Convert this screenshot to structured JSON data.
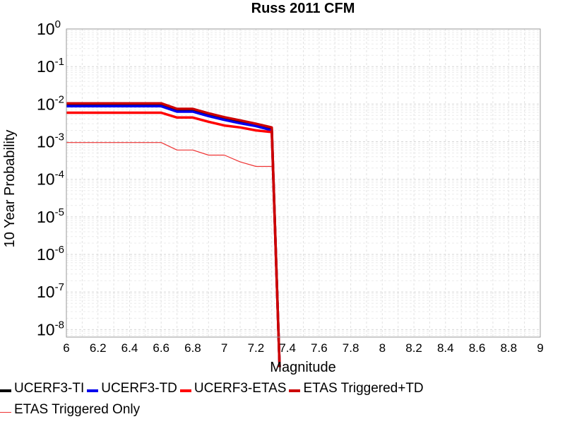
{
  "chart_data": {
    "type": "line",
    "title": "Russ 2011 CFM",
    "xlabel": "Magnitude",
    "ylabel": "10 Year Probability",
    "xlim": [
      6,
      9
    ],
    "ylim_log10": [
      -8.2,
      0
    ],
    "y_scale": "log",
    "x_ticks": [
      "6",
      "6.2",
      "6.4",
      "6.6",
      "6.8",
      "7",
      "7.2",
      "7.4",
      "7.6",
      "7.8",
      "8",
      "8.2",
      "8.4",
      "8.6",
      "8.8",
      "9"
    ],
    "y_ticks": [
      {
        "base": "10",
        "exp": "0"
      },
      {
        "base": "10",
        "exp": "-1"
      },
      {
        "base": "10",
        "exp": "-2"
      },
      {
        "base": "10",
        "exp": "-3"
      },
      {
        "base": "10",
        "exp": "-4"
      },
      {
        "base": "10",
        "exp": "-5"
      },
      {
        "base": "10",
        "exp": "-6"
      },
      {
        "base": "10",
        "exp": "-7"
      },
      {
        "base": "10",
        "exp": "-8"
      }
    ],
    "grid": true,
    "legend_position": "bottom",
    "series": [
      {
        "name": "UCERF3-TI",
        "color": "#000000",
        "weight": "thick",
        "x": [
          6.0,
          6.6,
          6.7,
          6.8,
          6.9,
          7.0,
          7.1,
          7.2,
          7.3,
          7.35
        ],
        "y": [
          0.0095,
          0.0095,
          0.0068,
          0.0068,
          0.0052,
          0.0041,
          0.0034,
          0.0028,
          0.0022,
          1e-09
        ]
      },
      {
        "name": "UCERF3-TD",
        "color": "#0000ee",
        "weight": "thick",
        "x": [
          6.0,
          6.6,
          6.7,
          6.8,
          6.9,
          7.0,
          7.1,
          7.2,
          7.3,
          7.35
        ],
        "y": [
          0.0088,
          0.0088,
          0.0063,
          0.0063,
          0.0048,
          0.0038,
          0.0031,
          0.0026,
          0.002,
          1e-09
        ]
      },
      {
        "name": "UCERF3-ETAS",
        "color": "#ff0000",
        "weight": "thick",
        "x": [
          6.0,
          6.6,
          6.7,
          6.8,
          6.9,
          7.0,
          7.1,
          7.2,
          7.3,
          7.35
        ],
        "y": [
          0.0059,
          0.0059,
          0.0044,
          0.0044,
          0.0034,
          0.0027,
          0.0024,
          0.002,
          0.0018,
          1e-09
        ]
      },
      {
        "name": "ETAS Triggered+TD",
        "color": "#cc0000",
        "weight": "thick",
        "x": [
          6.0,
          6.6,
          6.7,
          6.8,
          6.9,
          7.0,
          7.1,
          7.2,
          7.3,
          7.35
        ],
        "y": [
          0.0105,
          0.0105,
          0.0075,
          0.0075,
          0.0057,
          0.0045,
          0.0037,
          0.003,
          0.0024,
          1e-09
        ]
      },
      {
        "name": "ETAS Triggered Only",
        "color": "#ee3333",
        "weight": "thin",
        "x": [
          6.0,
          6.6,
          6.7,
          6.8,
          6.9,
          7.0,
          7.1,
          7.2,
          7.3
        ],
        "y": [
          0.00095,
          0.00095,
          0.0006,
          0.0006,
          0.00044,
          0.00044,
          0.00029,
          0.00022,
          0.00022
        ]
      }
    ]
  }
}
